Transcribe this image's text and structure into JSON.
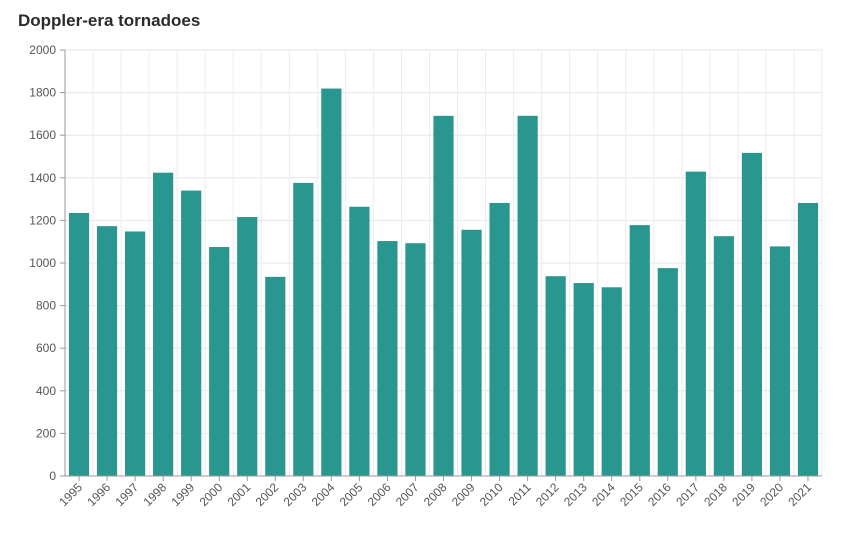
{
  "chart_data": {
    "type": "bar",
    "title": "Doppler-era tornadoes",
    "xlabel": "",
    "ylabel": "",
    "categories": [
      "1995",
      "1996",
      "1997",
      "1998",
      "1999",
      "2000",
      "2001",
      "2002",
      "2003",
      "2004",
      "2005",
      "2006",
      "2007",
      "2008",
      "2009",
      "2010",
      "2011",
      "2012",
      "2013",
      "2014",
      "2015",
      "2016",
      "2017",
      "2018",
      "2019",
      "2020",
      "2021"
    ],
    "values": [
      1235,
      1173,
      1148,
      1424,
      1340,
      1075,
      1216,
      935,
      1376,
      1819,
      1264,
      1103,
      1093,
      1691,
      1156,
      1282,
      1691,
      938,
      906,
      886,
      1178,
      976,
      1429,
      1126,
      1517,
      1078,
      1282
    ],
    "ylim": [
      0,
      2000
    ],
    "yticks": [
      0,
      200,
      400,
      600,
      800,
      1000,
      1200,
      1400,
      1600,
      1800,
      2000
    ],
    "grid": true,
    "bar_color": "#2a9690"
  }
}
